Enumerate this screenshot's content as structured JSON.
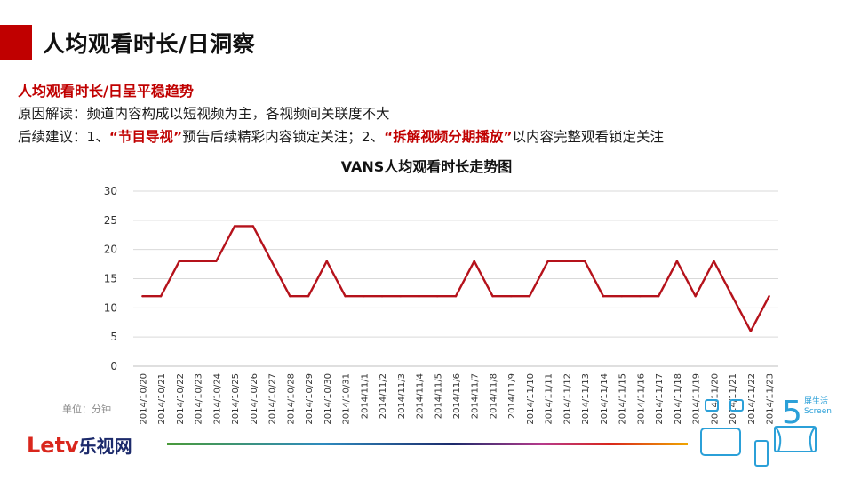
{
  "header": {
    "title": "人均观看时长/日洞察"
  },
  "insight": {
    "subheading": "人均观看时长/日呈平稳趋势",
    "line1": "原因解读：频道内容构成以短视频为主，各视频间关联度不大",
    "line2_a": "后续建议：1、",
    "line2_hl1": "“节目导视”",
    "line2_b": "预告后续精彩内容锁定关注；2、",
    "line2_hl2": "“拆解视频分期播放”",
    "line2_c": "以内容完整观看锁定关注"
  },
  "unit_label": "单位：分钟",
  "branding": {
    "logo_part1": "Letv",
    "logo_part2": "乐视网",
    "corner_number": "5",
    "corner_line1": "屏生活",
    "corner_line2": "Screen"
  },
  "colors": {
    "accent": "#c00000",
    "series_line": "#b5121b",
    "grid": "#d9d9d9"
  },
  "chart_data": {
    "type": "line",
    "title": "VANS人均观看时长走势图",
    "xlabel": "",
    "ylabel": "",
    "ylim": [
      0,
      30
    ],
    "yticks": [
      0,
      5,
      10,
      15,
      20,
      25,
      30
    ],
    "grid": true,
    "legend": "none",
    "categories": [
      "2014/10/20",
      "2014/10/21",
      "2014/10/22",
      "2014/10/23",
      "2014/10/24",
      "2014/10/25",
      "2014/10/26",
      "2014/10/27",
      "2014/10/28",
      "2014/10/29",
      "2014/10/30",
      "2014/10/31",
      "2014/11/1",
      "2014/11/2",
      "2014/11/3",
      "2014/11/4",
      "2014/11/5",
      "2014/11/6",
      "2014/11/7",
      "2014/11/8",
      "2014/11/9",
      "2014/11/10",
      "2014/11/11",
      "2014/11/12",
      "2014/11/13",
      "2014/11/14",
      "2014/11/15",
      "2014/11/16",
      "2014/11/17",
      "2014/11/18",
      "2014/11/19",
      "2014/11/20",
      "2014/11/21",
      "2014/11/22",
      "2014/11/23"
    ],
    "series": [
      {
        "values": [
          12,
          12,
          18,
          18,
          18,
          24,
          24,
          18,
          12,
          12,
          18,
          12,
          12,
          12,
          12,
          12,
          12,
          12,
          18,
          12,
          12,
          12,
          18,
          18,
          18,
          12,
          12,
          12,
          12,
          18,
          12,
          18,
          12,
          6,
          12
        ]
      }
    ]
  }
}
